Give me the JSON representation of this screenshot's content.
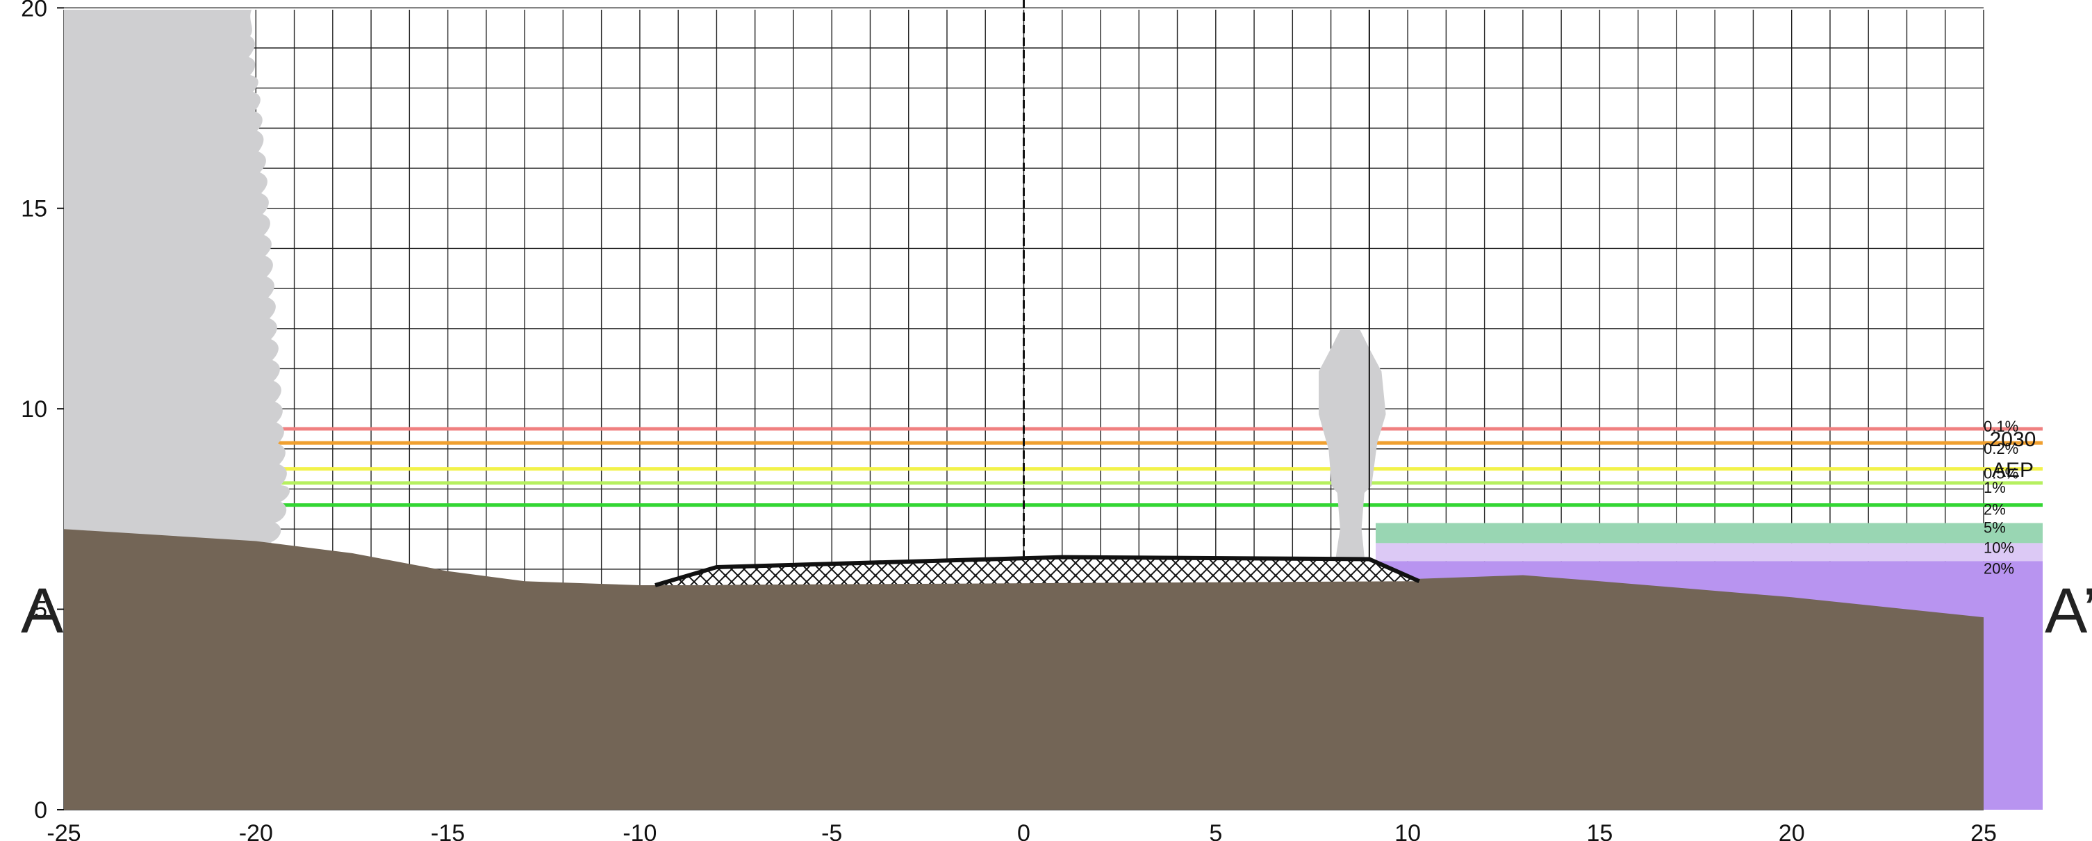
{
  "chart_data": {
    "type": "cross-section",
    "xlim": [
      -25,
      25
    ],
    "ylim": [
      0,
      21
    ],
    "grid": true,
    "x_ticks": [
      -25,
      -20,
      -15,
      -10,
      -5,
      0,
      5,
      10,
      15,
      20,
      25
    ],
    "y_ticks": [
      0,
      5,
      10,
      15,
      20
    ],
    "section_start_label": "A",
    "section_end_label": "A’",
    "legend_title": "2030",
    "legend_subtitle": "AEP",
    "flood_levels": [
      {
        "label": "0.1%",
        "level": 9.5,
        "color": "#f08080"
      },
      {
        "label": "0.2%",
        "level": 9.15,
        "color": "#f0a030"
      },
      {
        "label": "0.5%",
        "level": 8.5,
        "color": "#f2f24a"
      },
      {
        "label": "1%",
        "level": 8.15,
        "color": "#b6f060"
      },
      {
        "label": "2%",
        "level": 7.6,
        "color": "#33d633"
      },
      {
        "label": "5%",
        "level": 7.15,
        "color": "#99d6b3"
      },
      {
        "label": "10%",
        "level": 6.65,
        "color": "#dcc9f5"
      },
      {
        "label": "20%",
        "level": 6.2,
        "color": "#b894f0"
      }
    ],
    "ground_profile": [
      {
        "x": -25,
        "y": 7.0
      },
      {
        "x": -20,
        "y": 6.7
      },
      {
        "x": -17.5,
        "y": 6.4
      },
      {
        "x": -15,
        "y": 5.95
      },
      {
        "x": -13,
        "y": 5.7
      },
      {
        "x": -10,
        "y": 5.6
      },
      {
        "x": -8,
        "y": 5.6
      },
      {
        "x": -5,
        "y": 5.7
      },
      {
        "x": 0,
        "y": 5.75
      },
      {
        "x": 5,
        "y": 5.8
      },
      {
        "x": 10,
        "y": 5.75
      },
      {
        "x": 13,
        "y": 5.85
      },
      {
        "x": 15,
        "y": 5.7
      },
      {
        "x": 20,
        "y": 5.3
      },
      {
        "x": 25,
        "y": 4.8
      }
    ],
    "structure_profile": [
      {
        "x": -9.6,
        "y": 5.6
      },
      {
        "x": -8,
        "y": 6.05
      },
      {
        "x": 1,
        "y": 6.3
      },
      {
        "x": 9,
        "y": 6.25
      },
      {
        "x": 10.3,
        "y": 5.7
      }
    ],
    "centerline_x": 0,
    "vertical_guide_x": 9,
    "tree": {
      "x": -20,
      "base": 7.0,
      "top": 21
    },
    "person": {
      "x": 8.5,
      "base": 6.3,
      "height": 5.7
    }
  }
}
